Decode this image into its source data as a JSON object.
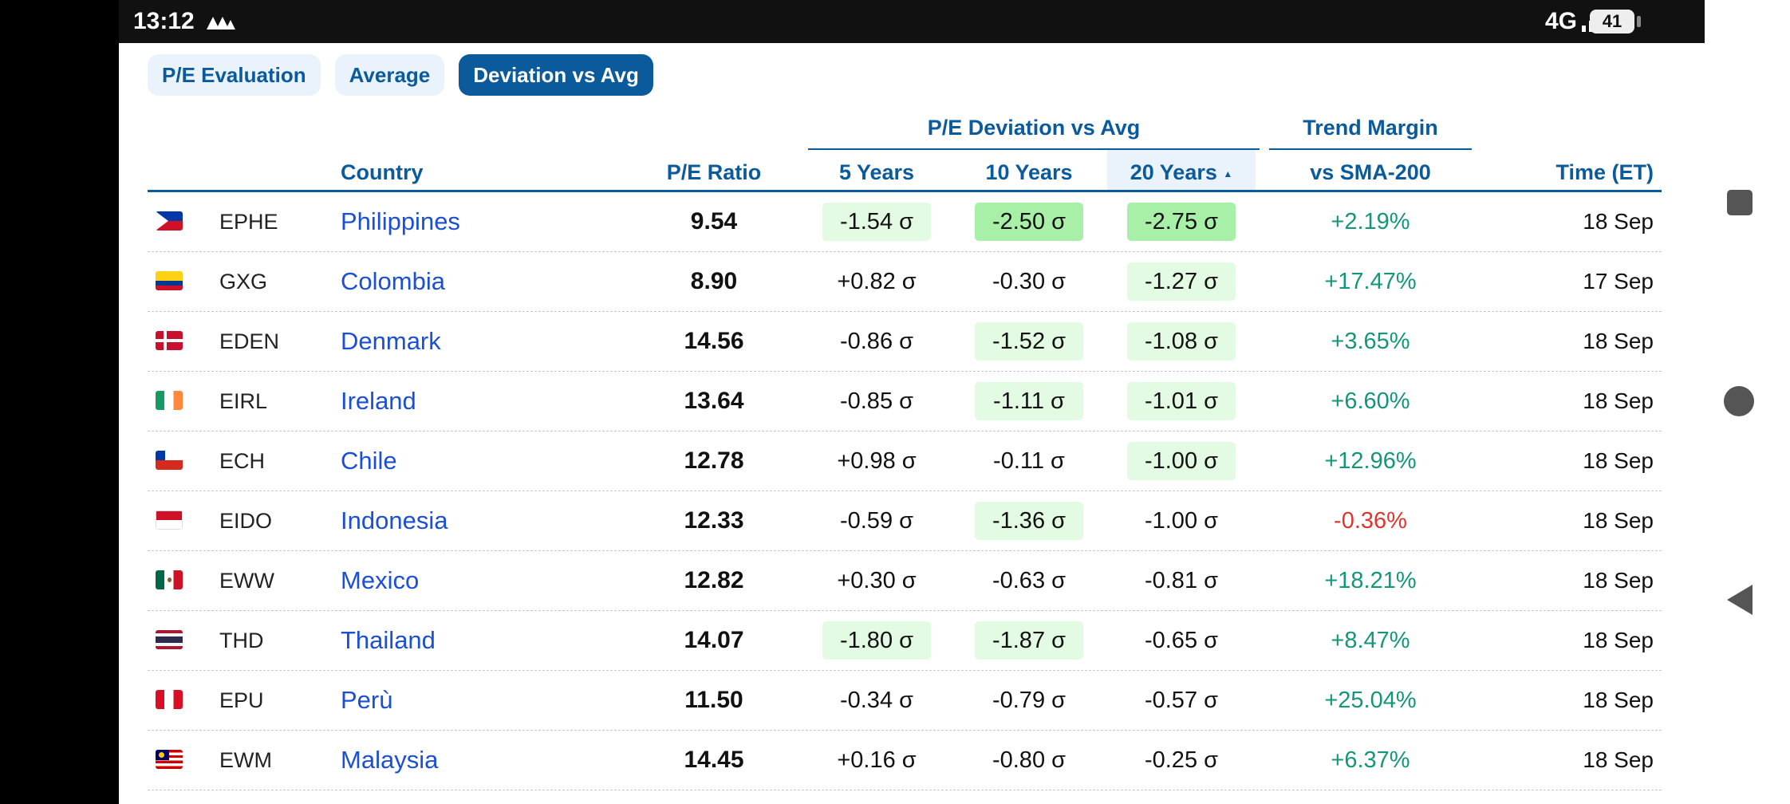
{
  "status_bar": {
    "time": "13:12",
    "network": "4G",
    "battery": "41"
  },
  "tabs": [
    {
      "label": "P/E Evaluation",
      "active": false
    },
    {
      "label": "Average",
      "active": false
    },
    {
      "label": "Deviation vs Avg",
      "active": true
    }
  ],
  "table": {
    "group_headers": {
      "deviation": "P/E Deviation vs Avg",
      "trend": "Trend Margin"
    },
    "columns": {
      "country": "Country",
      "pe": "P/E Ratio",
      "y5": "5 Years",
      "y10": "10 Years",
      "y20": "20 Years",
      "sort_icon": "▲",
      "sma": "vs SMA-200",
      "time": "Time (ET)"
    },
    "rows": [
      {
        "ticker": "EPHE",
        "country": "Philippines",
        "pe": "9.54",
        "d5": "-1.54 σ",
        "d10": "-2.50 σ",
        "d20": "-2.75 σ",
        "trend": "+2.19%",
        "time": "18 Sep",
        "hl": [
          "light",
          "strong",
          "strong"
        ],
        "flag": "ph"
      },
      {
        "ticker": "GXG",
        "country": "Colombia",
        "pe": "8.90",
        "d5": "+0.82 σ",
        "d10": "-0.30 σ",
        "d20": "-1.27 σ",
        "trend": "+17.47%",
        "time": "17 Sep",
        "hl": [
          "",
          "",
          "light"
        ],
        "flag": "co"
      },
      {
        "ticker": "EDEN",
        "country": "Denmark",
        "pe": "14.56",
        "d5": "-0.86 σ",
        "d10": "-1.52 σ",
        "d20": "-1.08 σ",
        "trend": "+3.65%",
        "time": "18 Sep",
        "hl": [
          "",
          "light",
          "light"
        ],
        "flag": "dk"
      },
      {
        "ticker": "EIRL",
        "country": "Ireland",
        "pe": "13.64",
        "d5": "-0.85 σ",
        "d10": "-1.11 σ",
        "d20": "-1.01 σ",
        "trend": "+6.60%",
        "time": "18 Sep",
        "hl": [
          "",
          "light",
          "light"
        ],
        "flag": "ie"
      },
      {
        "ticker": "ECH",
        "country": "Chile",
        "pe": "12.78",
        "d5": "+0.98 σ",
        "d10": "-0.11 σ",
        "d20": "-1.00 σ",
        "trend": "+12.96%",
        "time": "18 Sep",
        "hl": [
          "",
          "",
          "light"
        ],
        "flag": "cl"
      },
      {
        "ticker": "EIDO",
        "country": "Indonesia",
        "pe": "12.33",
        "d5": "-0.59 σ",
        "d10": "-1.36 σ",
        "d20": "-1.00 σ",
        "trend": "-0.36%",
        "time": "18 Sep",
        "hl": [
          "",
          "light",
          ""
        ],
        "flag": "id",
        "neg": true
      },
      {
        "ticker": "EWW",
        "country": "Mexico",
        "pe": "12.82",
        "d5": "+0.30 σ",
        "d10": "-0.63 σ",
        "d20": "-0.81 σ",
        "trend": "+18.21%",
        "time": "18 Sep",
        "hl": [
          "",
          "",
          ""
        ],
        "flag": "mx"
      },
      {
        "ticker": "THD",
        "country": "Thailand",
        "pe": "14.07",
        "d5": "-1.80 σ",
        "d10": "-1.87 σ",
        "d20": "-0.65 σ",
        "trend": "+8.47%",
        "time": "18 Sep",
        "hl": [
          "light",
          "light",
          ""
        ],
        "flag": "th"
      },
      {
        "ticker": "EPU",
        "country": "Perù",
        "pe": "11.50",
        "d5": "-0.34 σ",
        "d10": "-0.79 σ",
        "d20": "-0.57 σ",
        "trend": "+25.04%",
        "time": "18 Sep",
        "hl": [
          "",
          "",
          ""
        ],
        "flag": "pe"
      },
      {
        "ticker": "EWM",
        "country": "Malaysia",
        "pe": "14.45",
        "d5": "+0.16 σ",
        "d10": "-0.80 σ",
        "d20": "-0.25 σ",
        "trend": "+6.37%",
        "time": "18 Sep",
        "hl": [
          "",
          "",
          ""
        ],
        "flag": "my"
      }
    ]
  },
  "colors": {
    "accent": "#0a5a9c",
    "link": "#1a4fd6",
    "positive": "#12977a",
    "negative": "#e0352b",
    "hl_light": "#e3fbe3",
    "hl_strong": "#a8f0a8"
  }
}
